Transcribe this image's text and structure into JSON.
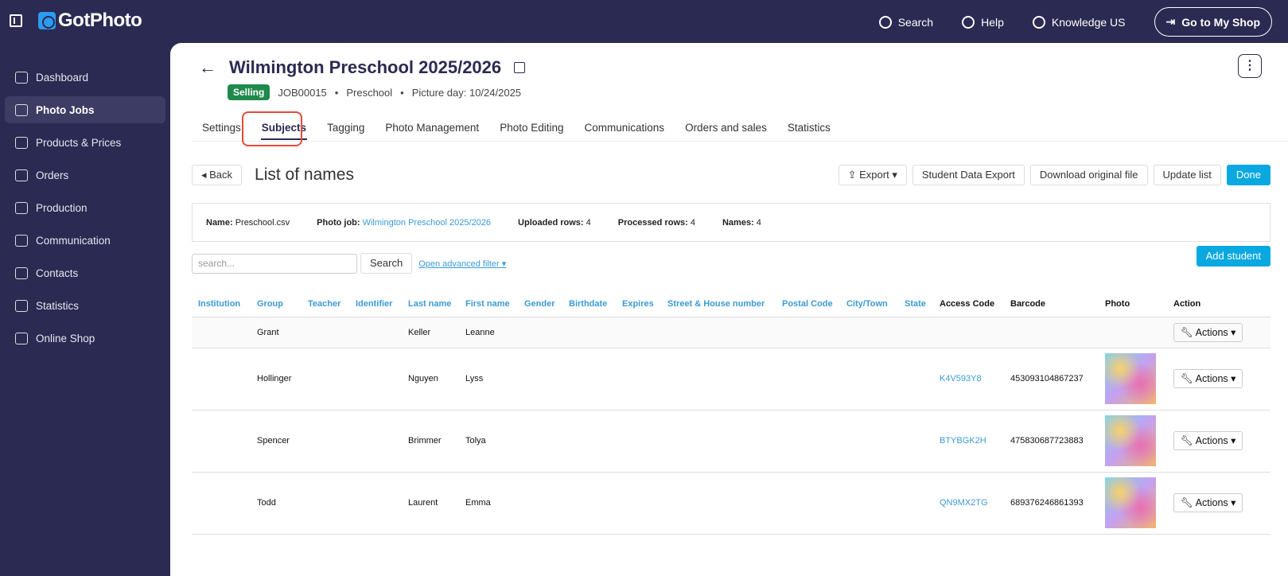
{
  "brand": "GotPhoto",
  "topnav": {
    "search": "Search",
    "help": "Help",
    "account": "Knowledge US",
    "shop": "Go to My Shop"
  },
  "sidebar": {
    "items": [
      {
        "label": "Dashboard",
        "icon": "home-icon"
      },
      {
        "label": "Photo Jobs",
        "icon": "image-icon",
        "active": true
      },
      {
        "label": "Products & Prices",
        "icon": "cart-icon"
      },
      {
        "label": "Orders",
        "icon": "box-icon"
      },
      {
        "label": "Production",
        "icon": "printer-icon"
      },
      {
        "label": "Communication",
        "icon": "message-icon"
      },
      {
        "label": "Contacts",
        "icon": "user-icon"
      },
      {
        "label": "Statistics",
        "icon": "chart-icon"
      },
      {
        "label": "Online Shop",
        "icon": "store-icon"
      }
    ]
  },
  "job": {
    "title": "Wilmington Preschool 2025/2026",
    "status": "Selling",
    "status_color": "#1f8a4c",
    "id": "JOB00015",
    "type": "Preschool",
    "picture_day": "Picture day: 10/24/2025"
  },
  "tabs": [
    "Settings",
    "Subjects",
    "Tagging",
    "Photo Management",
    "Photo Editing",
    "Communications",
    "Orders and sales",
    "Statistics"
  ],
  "active_tab": "Subjects",
  "toolbar": {
    "back": "Back",
    "heading": "List of names",
    "export": "Export",
    "student_export": "Student Data Export",
    "download": "Download original file",
    "update": "Update list",
    "done": "Done"
  },
  "info": {
    "name_label": "Name:",
    "name": "Preschool.csv",
    "job_label": "Photo job:",
    "job": "Wilmington Preschool 2025/2026",
    "uploaded_label": "Uploaded rows:",
    "uploaded": "4",
    "processed_label": "Processed rows:",
    "processed": "4",
    "names_label": "Names:",
    "names": "4"
  },
  "search": {
    "placeholder": "search...",
    "button": "Search",
    "advanced": "Open advanced filter",
    "add": "Add student"
  },
  "table": {
    "columns": [
      "Institution",
      "Group",
      "Teacher",
      "Identifier",
      "Last name",
      "First name",
      "Gender",
      "Birthdate",
      "Expires",
      "Street & House number",
      "Postal Code",
      "City/Town",
      "State",
      "Access Code",
      "Barcode",
      "Photo",
      "Action"
    ],
    "rows": [
      {
        "group": "Grant",
        "last": "Keller",
        "first": "Leanne",
        "code": "",
        "barcode": "",
        "photo": false,
        "action": "Actions"
      },
      {
        "group": "Hollinger",
        "last": "Nguyen",
        "first": "Lyss",
        "code": "K4V593Y8",
        "barcode": "453093104867237",
        "photo": true,
        "action": "Actions"
      },
      {
        "group": "Spencer",
        "last": "Brimmer",
        "first": "Tolya",
        "code": "BTYBGK2H",
        "barcode": "475830687723883",
        "photo": true,
        "action": "Actions"
      },
      {
        "group": "Todd",
        "last": "Laurent",
        "first": "Emma",
        "code": "QN9MX2TG",
        "barcode": "689376246861393",
        "photo": true,
        "action": "Actions"
      }
    ]
  },
  "colors": {
    "sidebar": "#2b2a52",
    "accent": "#0aa8e0",
    "link": "#3b9bd6",
    "highlight": "#e14b3b"
  }
}
